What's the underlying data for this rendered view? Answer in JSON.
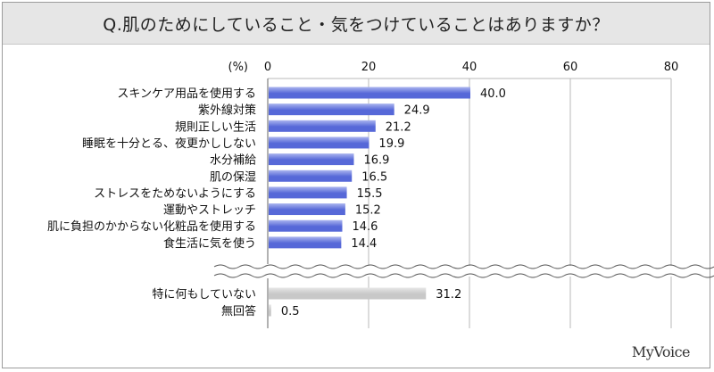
{
  "title": "Q.肌のためにしていること・気をつけていることはありますか？",
  "brand": "MyVoice",
  "chart_data": {
    "type": "bar",
    "orientation": "horizontal",
    "unit_label": "(%)",
    "xlim": [
      0,
      80
    ],
    "ticks": [
      0,
      20,
      40,
      60,
      80
    ],
    "grid": true,
    "axis_break": true,
    "colors": {
      "main": "#5668d8",
      "main_light": "#aab4ee",
      "other": "#c8c8c8",
      "other_light": "#e6e6e6"
    },
    "categories": [
      "スキンケア用品を使用する",
      "紫外線対策",
      "規則正しい生活",
      "睡眠を十分とる、夜更かししない",
      "水分補給",
      "肌の保湿",
      "ストレスをためないようにする",
      "運動やストレッチ",
      "肌に負担のかからない化粧品を使用する",
      "食生活に気を使う",
      "特に何もしていない",
      "無回答"
    ],
    "values": [
      40.0,
      24.9,
      21.2,
      19.9,
      16.9,
      16.5,
      15.5,
      15.2,
      14.6,
      14.4,
      31.2,
      0.5
    ],
    "value_labels": [
      "40.0",
      "24.9",
      "21.2",
      "19.9",
      "16.9",
      "16.5",
      "15.5",
      "15.2",
      "14.6",
      "14.4",
      "31.2",
      "0.5"
    ],
    "group": [
      "main",
      "main",
      "main",
      "main",
      "main",
      "main",
      "main",
      "main",
      "main",
      "main",
      "other",
      "other"
    ]
  }
}
